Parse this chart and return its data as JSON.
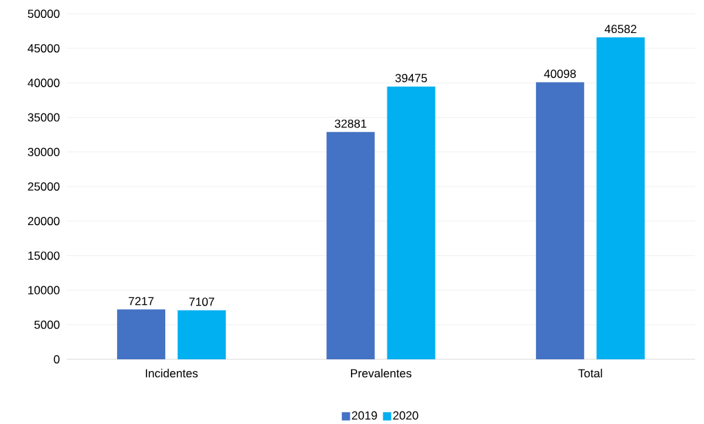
{
  "chart_data": {
    "type": "bar",
    "categories": [
      "Incidentes",
      "Prevalentes",
      "Total"
    ],
    "series": [
      {
        "name": "2019",
        "color": "#4472c4",
        "values": [
          7217,
          32881,
          40098
        ]
      },
      {
        "name": "2020",
        "color": "#00b0f0",
        "values": [
          7107,
          39475,
          46582
        ]
      }
    ],
    "ylim": [
      0,
      50000
    ],
    "yticks": [
      0,
      5000,
      10000,
      15000,
      20000,
      25000,
      30000,
      35000,
      40000,
      45000,
      50000
    ],
    "grid": "y",
    "legend": "bottom",
    "data_labels": true
  }
}
